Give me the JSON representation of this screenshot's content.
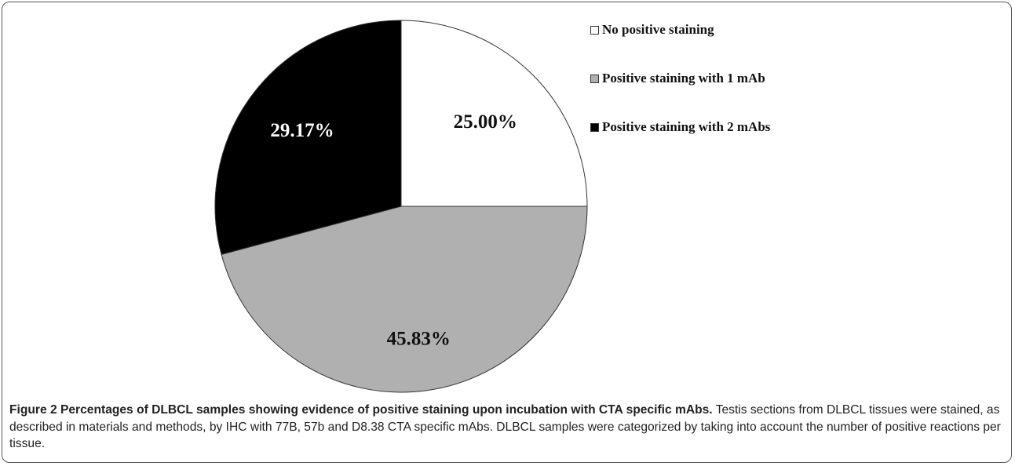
{
  "chart_data": {
    "type": "pie",
    "title": "",
    "slices": [
      {
        "label": "No positive staining",
        "value": 25.0,
        "display": "25.00%",
        "color": "#ffffff",
        "label_color": "#111111"
      },
      {
        "label": "Positive staining with 1 mAb",
        "value": 45.83,
        "display": "45.83%",
        "color": "#b0b0b0",
        "label_color": "#111111"
      },
      {
        "label": "Positive staining with 2 mAbs",
        "value": 29.17,
        "display": "29.17%",
        "color": "#000000",
        "label_color": "#ffffff"
      }
    ],
    "start_angle": "12 o'clock",
    "direction": "clockwise",
    "legend_position": "right"
  },
  "caption": {
    "title": "Figure 2 Percentages of DLBCL samples showing evidence of positive staining upon incubation with CTA specific mAbs.",
    "body": " Testis sections from DLBCL tissues were stained, as described in materials and methods, by IHC with 77B, 57b and D8.38 CTA specific mAbs. DLBCL samples were categorized by taking into account the number of positive reactions per tissue."
  }
}
